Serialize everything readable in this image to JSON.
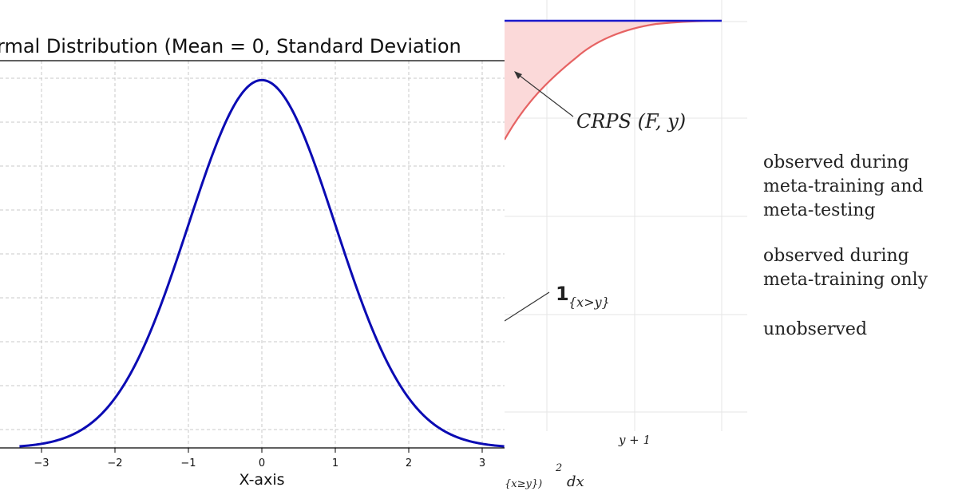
{
  "chart_data": [
    {
      "type": "line",
      "title": "rmal Distribution (Mean = 0, Standard Deviation",
      "xlabel": "X-axis",
      "ylabel": "",
      "xlim": [
        -3.3,
        3.3
      ],
      "ylim": [
        0,
        0.42
      ],
      "grid": true,
      "xticks": [
        -3,
        -2,
        -1,
        0,
        1,
        2,
        3
      ],
      "xtick_labels": [
        "−3",
        "−2",
        "−1",
        "0",
        "1",
        "2",
        "3"
      ],
      "series": [
        {
          "color": "#0b0bb3",
          "function": "normal_pdf",
          "mean": 0,
          "std": 1
        }
      ]
    },
    {
      "type": "line",
      "annotations": {
        "crps": "CRPS (F, y)",
        "indicator_base": "1",
        "indicator_sub": "{x>y}",
        "xtick": "y + 1",
        "formula_fragment": "{x≥y})",
        "formula_power": "2",
        "formula_dx": "dx"
      },
      "series": [
        {
          "name": "",
          "color": "#1a1acc",
          "kind": "step"
        },
        {
          "name": "",
          "color": "#e45a5a",
          "kind": "cdf"
        }
      ]
    }
  ],
  "legend": {
    "line1": "observed during",
    "line2": "meta-training and",
    "line3": "meta-testing",
    "line4": "observed during",
    "line5": "meta-training only",
    "line6": "unobserved"
  }
}
